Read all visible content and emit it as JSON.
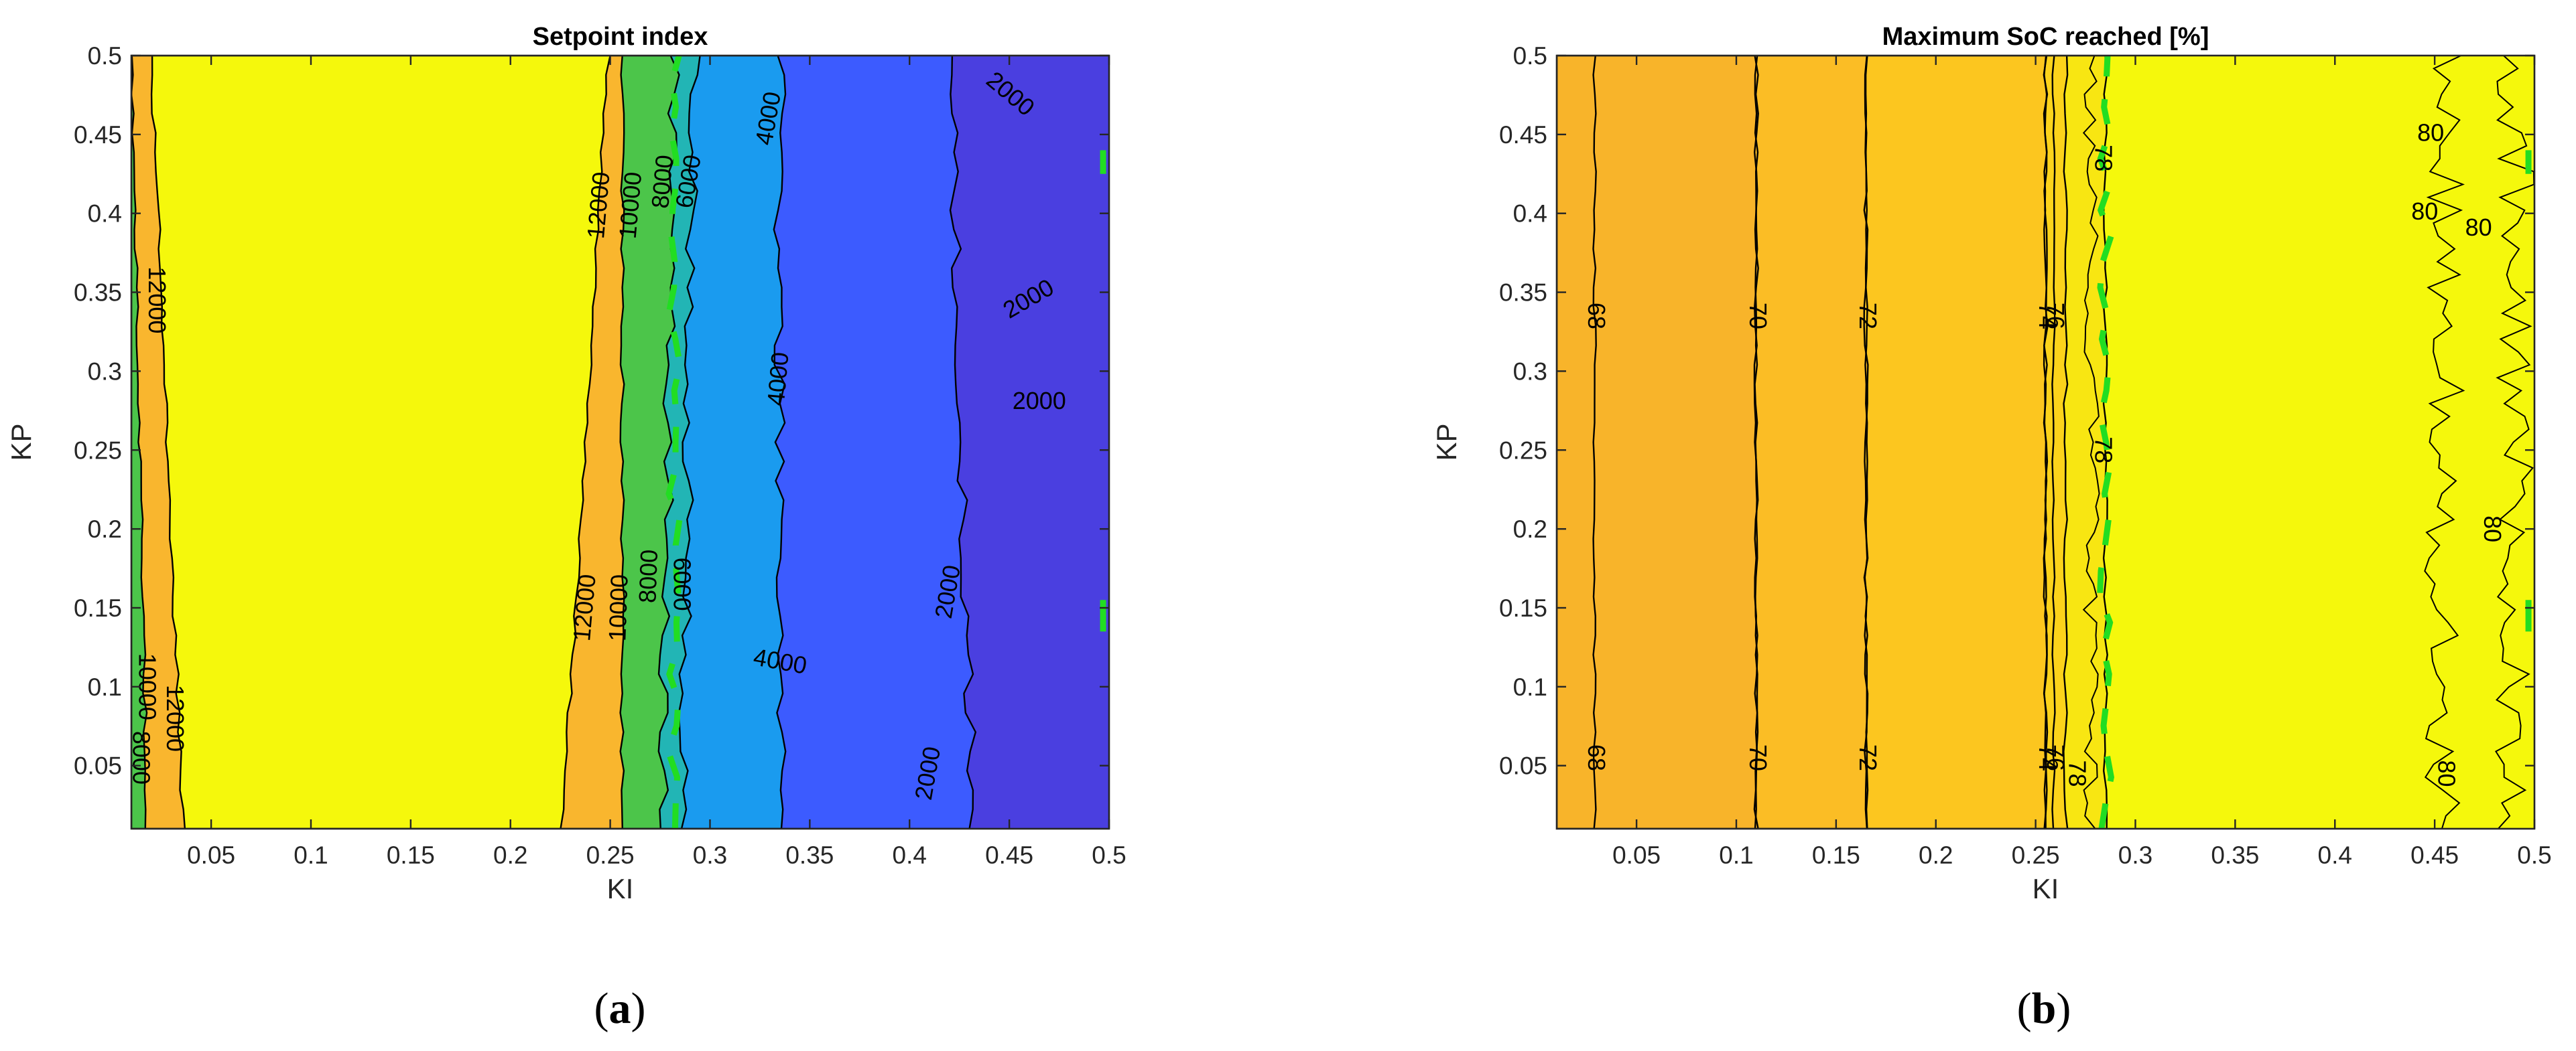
{
  "chart_data": [
    {
      "type": "contour",
      "panel_id": "a",
      "title": "Setpoint index",
      "xlabel": "KI",
      "ylabel": "KP",
      "xlim": [
        0.01,
        0.5
      ],
      "ylim": [
        0.01,
        0.5
      ],
      "xticks": [
        0.05,
        0.1,
        0.15,
        0.2,
        0.25,
        0.3,
        0.35,
        0.4,
        0.45,
        0.5
      ],
      "xtick_labels": [
        "0.05",
        "0.1",
        "0.15",
        "0.2",
        "0.25",
        "0.3",
        "0.35",
        "0.4",
        "0.45",
        "0.5"
      ],
      "yticks": [
        0.05,
        0.1,
        0.15,
        0.2,
        0.25,
        0.3,
        0.35,
        0.4,
        0.45,
        0.5
      ],
      "ytick_labels": [
        "0.05",
        "0.1",
        "0.15",
        "0.2",
        "0.25",
        "0.3",
        "0.35",
        "0.4",
        "0.45",
        "0.5"
      ],
      "grid": false,
      "levels": [
        {
          "value": 0,
          "color": "#4a3fe0"
        },
        {
          "value": 2000,
          "color": "#3c5bff"
        },
        {
          "value": 4000,
          "color": "#1a9bef"
        },
        {
          "value": 6000,
          "color": "#22b5b5"
        },
        {
          "value": 8000,
          "color": "#4cc54a"
        },
        {
          "value": 10000,
          "color": "#f9b62e"
        },
        {
          "value": 12000,
          "color": "#f5f80c"
        }
      ],
      "regions": [
        {
          "name": "region-green-left",
          "color": "#4cc54a",
          "x_left": 0.01,
          "x_right_bottom": 0.018,
          "x_right_top": 0.01
        },
        {
          "name": "region-orange-left",
          "color": "#f9b62e",
          "x_left": 0.01,
          "x_right_bottom": 0.036,
          "x_right_top": 0.02
        },
        {
          "name": "region-yellow",
          "color": "#f5f80c",
          "x_left": 0.02,
          "x_right_bottom": 0.226,
          "x_right_top": 0.249
        },
        {
          "name": "region-orange-right",
          "color": "#f9b62e",
          "x_left": 0.226,
          "x_right_bottom": 0.256,
          "x_right_top": 0.256
        },
        {
          "name": "region-green-right",
          "color": "#4cc54a",
          "x_left": 0.256,
          "x_right_bottom": 0.276,
          "x_right_top": 0.282
        },
        {
          "name": "region-teal",
          "color": "#22b5b5",
          "x_left": 0.276,
          "x_right_bottom": 0.286,
          "x_right_top": 0.292
        },
        {
          "name": "region-light-blue",
          "color": "#1a9bef",
          "x_left": 0.286,
          "x_right_bottom": 0.335,
          "x_right_top": 0.335
        },
        {
          "name": "region-blue",
          "color": "#3c5bff",
          "x_left": 0.335,
          "x_right_bottom": 0.432,
          "x_right_top": 0.42
        },
        {
          "name": "region-indigo",
          "color": "#4a3fe0",
          "x_left": 0.42,
          "x_right_bottom": 0.5,
          "x_right_top": 0.5
        }
      ],
      "contour_labels": [
        {
          "text": "12000",
          "x": 0.022,
          "y": 0.345,
          "rotation": 90
        },
        {
          "text": "10000",
          "x": 0.017,
          "y": 0.1,
          "rotation": 90
        },
        {
          "text": "12000",
          "x": 0.031,
          "y": 0.08,
          "rotation": 90
        },
        {
          "text": "8000",
          "x": 0.014,
          "y": 0.055,
          "rotation": 90
        },
        {
          "text": "12000",
          "x": 0.245,
          "y": 0.405,
          "rotation": -85
        },
        {
          "text": "10000",
          "x": 0.261,
          "y": 0.405,
          "rotation": -85
        },
        {
          "text": "8000",
          "x": 0.277,
          "y": 0.42,
          "rotation": -85
        },
        {
          "text": "6000",
          "x": 0.29,
          "y": 0.42,
          "rotation": -80
        },
        {
          "text": "4000",
          "x": 0.33,
          "y": 0.46,
          "rotation": -80
        },
        {
          "text": "2000",
          "x": 0.45,
          "y": 0.475,
          "rotation": 40
        },
        {
          "text": "2000",
          "x": 0.46,
          "y": 0.345,
          "rotation": -30
        },
        {
          "text": "4000",
          "x": 0.335,
          "y": 0.295,
          "rotation": -85
        },
        {
          "text": "2000",
          "x": 0.465,
          "y": 0.28,
          "rotation": 0
        },
        {
          "text": "12000",
          "x": 0.238,
          "y": 0.15,
          "rotation": -85
        },
        {
          "text": "10000",
          "x": 0.255,
          "y": 0.15,
          "rotation": -88
        },
        {
          "text": "8000",
          "x": 0.27,
          "y": 0.17,
          "rotation": -88
        },
        {
          "text": "6000",
          "x": 0.285,
          "y": 0.165,
          "rotation": 90
        },
        {
          "text": "4000",
          "x": 0.335,
          "y": 0.115,
          "rotation": 10
        },
        {
          "text": "2000",
          "x": 0.42,
          "y": 0.16,
          "rotation": -80
        },
        {
          "text": "2000",
          "x": 0.41,
          "y": 0.045,
          "rotation": -80
        }
      ]
    },
    {
      "type": "contour",
      "panel_id": "b",
      "title": "Maximum SoC reached [%]",
      "xlabel": "KI",
      "ylabel": "KP",
      "xlim": [
        0.01,
        0.5
      ],
      "ylim": [
        0.01,
        0.5
      ],
      "xticks": [
        0.05,
        0.1,
        0.15,
        0.2,
        0.25,
        0.3,
        0.35,
        0.4,
        0.45,
        0.5
      ],
      "xtick_labels": [
        "0.05",
        "0.1",
        "0.15",
        "0.2",
        "0.25",
        "0.3",
        "0.35",
        "0.4",
        "0.45",
        "0.5"
      ],
      "yticks": [
        0.05,
        0.1,
        0.15,
        0.2,
        0.25,
        0.3,
        0.35,
        0.4,
        0.45,
        0.5
      ],
      "ytick_labels": [
        "0.05",
        "0.1",
        "0.15",
        "0.2",
        "0.25",
        "0.3",
        "0.35",
        "0.4",
        "0.45",
        "0.5"
      ],
      "grid": false,
      "regions": [
        {
          "name": "region-68",
          "color": "#f8b42a",
          "x_left": 0.01,
          "x_right_bottom": 0.11,
          "x_right_top": 0.11
        },
        {
          "name": "region-70",
          "color": "#fbbd25",
          "x_left": 0.11,
          "x_right_bottom": 0.165,
          "x_right_top": 0.165
        },
        {
          "name": "region-72",
          "color": "#fcc61f",
          "x_left": 0.165,
          "x_right_bottom": 0.255,
          "x_right_top": 0.255
        },
        {
          "name": "region-74",
          "color": "#fcd31b",
          "x_left": 0.255,
          "x_right_bottom": 0.265,
          "x_right_top": 0.265
        },
        {
          "name": "region-78",
          "color": "#f8e612",
          "x_left": 0.265,
          "x_right_bottom": 0.285,
          "x_right_top": 0.285
        },
        {
          "name": "region-80",
          "color": "#f5f80c",
          "x_left": 0.285,
          "x_right_bottom": 0.5,
          "x_right_top": 0.5
        }
      ],
      "contour_lines": [
        0.029,
        0.11,
        0.165,
        0.255,
        0.259
      ],
      "contour_labels": [
        {
          "text": "68",
          "x": 0.029,
          "y": 0.335,
          "rotation": 90
        },
        {
          "text": "70",
          "x": 0.11,
          "y": 0.335,
          "rotation": 90
        },
        {
          "text": "72",
          "x": 0.165,
          "y": 0.335,
          "rotation": 90
        },
        {
          "text": "74",
          "x": 0.255,
          "y": 0.335,
          "rotation": 90
        },
        {
          "text": "76",
          "x": 0.259,
          "y": 0.335,
          "rotation": 90
        },
        {
          "text": "68",
          "x": 0.029,
          "y": 0.055,
          "rotation": 90
        },
        {
          "text": "70",
          "x": 0.11,
          "y": 0.055,
          "rotation": 90
        },
        {
          "text": "72",
          "x": 0.165,
          "y": 0.055,
          "rotation": 90
        },
        {
          "text": "74",
          "x": 0.255,
          "y": 0.055,
          "rotation": 90
        },
        {
          "text": "76",
          "x": 0.259,
          "y": 0.055,
          "rotation": 90
        },
        {
          "text": "78",
          "x": 0.27,
          "y": 0.045,
          "rotation": 90
        },
        {
          "text": "78",
          "x": 0.283,
          "y": 0.435,
          "rotation": 90
        },
        {
          "text": "78",
          "x": 0.283,
          "y": 0.25,
          "rotation": 90
        },
        {
          "text": "80",
          "x": 0.448,
          "y": 0.45,
          "rotation": 0
        },
        {
          "text": "80",
          "x": 0.445,
          "y": 0.4,
          "rotation": 0
        },
        {
          "text": "80",
          "x": 0.472,
          "y": 0.39,
          "rotation": 0
        },
        {
          "text": "80",
          "x": 0.478,
          "y": 0.2,
          "rotation": 90
        },
        {
          "text": "80",
          "x": 0.455,
          "y": 0.045,
          "rotation": 90
        }
      ]
    }
  ],
  "captions": [
    {
      "open": "(",
      "letter": "a",
      "close": ")"
    },
    {
      "open": "(",
      "letter": "b",
      "close": ")"
    }
  ],
  "highlight_color": "#22dd22"
}
